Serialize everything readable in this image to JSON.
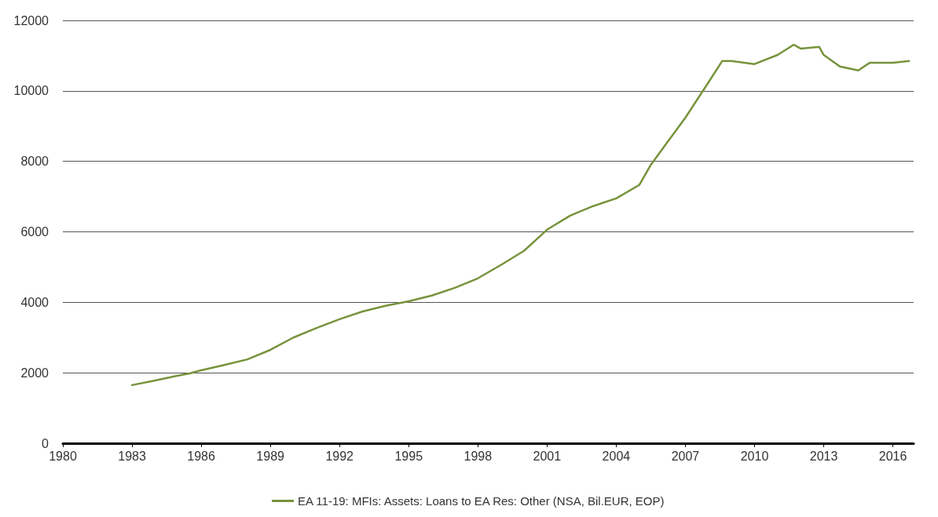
{
  "chart_data": {
    "type": "line",
    "x": [
      1983,
      1984,
      1985,
      1985.5,
      1986,
      1987,
      1988,
      1989,
      1990,
      1991,
      1992,
      1993,
      1994,
      1995,
      1996,
      1997,
      1998,
      1999,
      2000,
      2001,
      2002,
      2003,
      2004,
      2005,
      2005.5,
      2006,
      2007,
      2008,
      2008.6,
      2009,
      2010,
      2011,
      2011.7,
      2012,
      2012.8,
      2013,
      2013.7,
      2014.5,
      2015,
      2016,
      2016.7
    ],
    "series": [
      {
        "name": "EA 11-19: MFIs: Assets: Loans to EA Res: Other (NSA, Bil.EUR, EOP)",
        "color": "#77933c",
        "values": [
          1650,
          1780,
          1920,
          1980,
          2070,
          2220,
          2380,
          2650,
          3000,
          3270,
          3520,
          3740,
          3900,
          4030,
          4190,
          4410,
          4680,
          5060,
          5460,
          6060,
          6460,
          6730,
          6950,
          7330,
          7900,
          8350,
          9240,
          10240,
          10850,
          10850,
          10760,
          11020,
          11310,
          11200,
          11250,
          11020,
          10690,
          10580,
          10800,
          10800,
          10850
        ]
      }
    ],
    "xlim": [
      1980,
      2016.9
    ],
    "xticks": [
      1980,
      1983,
      1986,
      1989,
      1992,
      1995,
      1998,
      2001,
      2004,
      2007,
      2010,
      2013,
      2016
    ],
    "ylim": [
      0,
      12000
    ],
    "yticks": [
      0,
      2000,
      4000,
      6000,
      8000,
      10000,
      12000
    ],
    "grid": "y",
    "legend": "bottom",
    "marker": "none",
    "line_style": "solid"
  }
}
